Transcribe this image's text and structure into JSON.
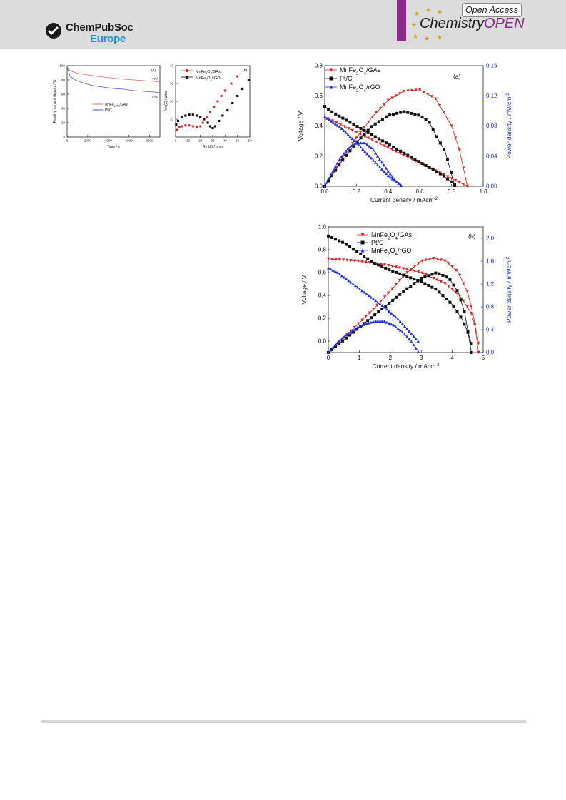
{
  "header": {
    "publisher_line1": "ChemPubSoc",
    "publisher_line2": "Europe",
    "open_access": "Open Access",
    "journal_part1": "Chemistry",
    "journal_part2": "OPEN",
    "brand_color": "#8b2b8b",
    "publisher_accent": "#1e8fcf"
  },
  "chart_data": [
    {
      "id": "stability",
      "type": "line",
      "panel_label": "(a)",
      "xlabel": "Time / s",
      "ylabel": "Relative current density / %",
      "xlim": [
        0,
        9000
      ],
      "ylim": [
        0,
        100
      ],
      "xticks": [
        0,
        2000,
        4000,
        6000,
        8000
      ],
      "yticks": [
        0,
        20,
        40,
        60,
        80,
        100
      ],
      "series": [
        {
          "name": "MnFe2O4/GAs",
          "color": "#e36a6a",
          "end_label": "77%",
          "x": [
            0,
            300,
            800,
            1500,
            2500,
            3500,
            4500,
            5500,
            6500,
            7500,
            8500,
            9000
          ],
          "y": [
            98,
            93,
            90,
            88,
            86,
            84,
            82.5,
            81,
            80,
            79,
            78,
            77
          ]
        },
        {
          "name": "Pt/C",
          "color": "#5555cc",
          "end_label": "62%",
          "x": [
            0,
            300,
            800,
            1500,
            2500,
            3500,
            4500,
            5500,
            6500,
            7500,
            8500,
            9000
          ],
          "y": [
            98,
            85,
            80,
            76,
            72,
            70,
            68,
            67,
            65,
            64,
            63,
            62
          ]
        }
      ]
    },
    {
      "id": "nyquist",
      "type": "scatter",
      "panel_label": "(b)",
      "xlabel": "Re (Z) / ohm",
      "ylabel": "-Im (Z) / ohm",
      "xlim": [
        0,
        60
      ],
      "ylim": [
        0,
        40
      ],
      "xticks": [
        0,
        10,
        20,
        30,
        40,
        50,
        60
      ],
      "yticks": [
        10,
        20,
        30,
        40
      ],
      "series": [
        {
          "name": "MnFe2O4/GAs",
          "color": "#e02020",
          "x": [
            1,
            3,
            5,
            8,
            11,
            14,
            17,
            20,
            22,
            25,
            28,
            31,
            34,
            37,
            40,
            45,
            50
          ],
          "y": [
            4,
            5.5,
            6,
            6.5,
            6.5,
            6,
            5.5,
            6,
            8,
            11,
            14,
            17,
            20,
            23,
            26,
            30,
            34
          ]
        },
        {
          "name": "MnFe2O4/rGO",
          "color": "#111111",
          "x": [
            0.5,
            2,
            5,
            8,
            11,
            14,
            17,
            20,
            23,
            26,
            28,
            30,
            32,
            35,
            38,
            42,
            46,
            50,
            54,
            59
          ],
          "y": [
            7,
            9,
            11,
            12,
            12.5,
            12.5,
            12,
            11,
            10,
            8,
            6,
            5,
            6,
            9,
            12,
            15,
            19,
            23,
            27,
            32
          ]
        }
      ]
    },
    {
      "id": "polarization_a",
      "type": "line",
      "panel_label": "(a)",
      "xlabel": "Current density / mAcm",
      "xlabel_sup": "-2",
      "ylabel": "Voltage / V",
      "y2label": "Power density / mWcm",
      "y2label_sup": "-2",
      "xlim": [
        0,
        1.0
      ],
      "ylim": [
        0,
        0.8
      ],
      "y2lim": [
        0,
        0.16
      ],
      "xticks": [
        0.0,
        0.2,
        0.4,
        0.6,
        0.8,
        1.0
      ],
      "yticks": [
        0.0,
        0.2,
        0.4,
        0.6,
        0.8
      ],
      "y2ticks": [
        0.0,
        0.04,
        0.08,
        0.12,
        0.16
      ],
      "legend": [
        "MnFe2O4/GAs",
        "Pt/C",
        "MnFe2O4/rGO"
      ],
      "series": [
        {
          "name": "MnFe2O4/GAs",
          "color": "#e02020",
          "marker": "triangle-down",
          "axis": "left",
          "x": [
            0.0,
            0.9
          ],
          "y": [
            0.46,
            0.0
          ]
        },
        {
          "name": "MnFe2O4/GAs",
          "color": "#e02020",
          "marker": "triangle-down",
          "axis": "right",
          "x": [
            0.0,
            0.1,
            0.2,
            0.3,
            0.4,
            0.5,
            0.6,
            0.7,
            0.8,
            0.85,
            0.9
          ],
          "y": [
            0.0,
            0.034,
            0.064,
            0.092,
            0.114,
            0.126,
            0.128,
            0.116,
            0.08,
            0.048,
            0.0
          ]
        },
        {
          "name": "Pt/C",
          "color": "#111111",
          "marker": "square",
          "axis": "left",
          "x": [
            0.0,
            0.05,
            0.15,
            0.3,
            0.5,
            0.65,
            0.75,
            0.82
          ],
          "y": [
            0.53,
            0.49,
            0.43,
            0.34,
            0.22,
            0.13,
            0.07,
            0.01
          ]
        },
        {
          "name": "Pt/C",
          "color": "#111111",
          "marker": "square",
          "axis": "right",
          "x": [
            0.0,
            0.1,
            0.2,
            0.3,
            0.4,
            0.5,
            0.6,
            0.66,
            0.7,
            0.76,
            0.82
          ],
          "y": [
            0.0,
            0.031,
            0.058,
            0.08,
            0.094,
            0.099,
            0.094,
            0.085,
            0.068,
            0.046,
            0.001
          ]
        },
        {
          "name": "MnFe2O4/rGO",
          "color": "#1f2fe0",
          "marker": "triangle-up",
          "axis": "left",
          "x": [
            0.0,
            0.1,
            0.2,
            0.3,
            0.4,
            0.48
          ],
          "y": [
            0.46,
            0.39,
            0.29,
            0.18,
            0.07,
            0.01
          ]
        },
        {
          "name": "MnFe2O4/rGO",
          "color": "#1f2fe0",
          "marker": "triangle-up",
          "axis": "right",
          "x": [
            0.0,
            0.05,
            0.1,
            0.15,
            0.2,
            0.25,
            0.3,
            0.35,
            0.4,
            0.45,
            0.48
          ],
          "y": [
            0.0,
            0.02,
            0.038,
            0.051,
            0.057,
            0.058,
            0.05,
            0.035,
            0.02,
            0.007,
            0.001
          ]
        }
      ]
    },
    {
      "id": "polarization_b",
      "type": "line",
      "panel_label": "(b)",
      "xlabel": "Current density / mAcm",
      "xlabel_sup": "-2",
      "ylabel": "Voltage / V",
      "y2label": "Power density / mWcm",
      "y2label_sup": "-2",
      "xlim": [
        0,
        5
      ],
      "ylim": [
        -0.1,
        1.0
      ],
      "y2lim": [
        0,
        2.2
      ],
      "xticks": [
        0,
        1,
        2,
        3,
        4,
        5
      ],
      "yticks": [
        0.0,
        0.2,
        0.4,
        0.6,
        0.8,
        1.0
      ],
      "y2ticks": [
        0.0,
        0.4,
        0.8,
        1.2,
        1.6,
        2.0
      ],
      "legend": [
        "MnFe2O4/GAs",
        "Pt/C",
        "MnFe2O4/rGO"
      ],
      "series": [
        {
          "name": "MnFe2O4/GAs",
          "color": "#e02020",
          "marker": "triangle-down",
          "axis": "left",
          "x": [
            0.0,
            1.0,
            2.0,
            3.0,
            3.8,
            4.3,
            4.6,
            4.75,
            4.82,
            4.85
          ],
          "y": [
            0.72,
            0.7,
            0.66,
            0.6,
            0.5,
            0.38,
            0.25,
            0.12,
            0.03,
            -0.02
          ]
        },
        {
          "name": "MnFe2O4/GAs",
          "color": "#e02020",
          "marker": "triangle-down",
          "axis": "right",
          "x": [
            0.0,
            0.5,
            1.0,
            1.5,
            2.0,
            2.5,
            3.0,
            3.4,
            3.8,
            4.2,
            4.5,
            4.7,
            4.85
          ],
          "y": [
            0.0,
            0.26,
            0.52,
            0.78,
            1.08,
            1.38,
            1.6,
            1.65,
            1.6,
            1.4,
            1.05,
            0.6,
            0.0
          ]
        },
        {
          "name": "Pt/C",
          "color": "#111111",
          "marker": "square",
          "axis": "left",
          "x": [
            0.0,
            0.5,
            1.0,
            1.5,
            2.0,
            2.5,
            3.0,
            3.5,
            4.0,
            4.3,
            4.5,
            4.62
          ],
          "y": [
            0.92,
            0.86,
            0.77,
            0.68,
            0.62,
            0.57,
            0.52,
            0.45,
            0.32,
            0.2,
            0.08,
            -0.02
          ]
        },
        {
          "name": "Pt/C",
          "color": "#111111",
          "marker": "square",
          "axis": "right",
          "x": [
            0.0,
            0.5,
            1.0,
            1.5,
            2.0,
            2.5,
            3.0,
            3.5,
            3.9,
            4.2,
            4.4,
            4.62
          ],
          "y": [
            0.0,
            0.22,
            0.44,
            0.66,
            0.88,
            1.1,
            1.3,
            1.4,
            1.3,
            1.05,
            0.7,
            0.0
          ]
        },
        {
          "name": "MnFe2O4/rGO",
          "color": "#1f2fe0",
          "marker": "triangle-up",
          "axis": "left",
          "x": [
            0.0,
            0.3,
            0.7,
            1.2,
            1.8,
            2.3,
            2.6,
            2.8,
            2.9
          ],
          "y": [
            0.64,
            0.6,
            0.52,
            0.42,
            0.3,
            0.18,
            0.09,
            0.03,
            0.0
          ]
        },
        {
          "name": "MnFe2O4/rGO",
          "color": "#1f2fe0",
          "marker": "triangle-up",
          "axis": "right",
          "x": [
            0.0,
            0.3,
            0.6,
            0.9,
            1.2,
            1.5,
            1.8,
            2.1,
            2.4,
            2.7,
            2.9
          ],
          "y": [
            0.0,
            0.18,
            0.32,
            0.43,
            0.5,
            0.55,
            0.55,
            0.48,
            0.36,
            0.18,
            0.02
          ]
        }
      ]
    }
  ]
}
